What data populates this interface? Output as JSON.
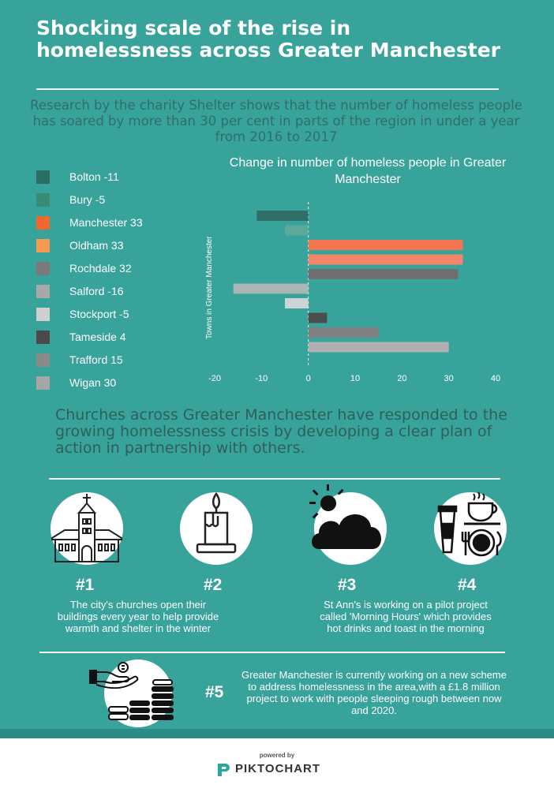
{
  "header": {
    "title": "Shocking scale of the rise in homelessness across Greater Manchester",
    "subtitle": "Research by the charity Shelter shows that the number of homeless people has soared by more than 30 per cent in parts of the region in under a year from 2016 to 2017"
  },
  "legend": {
    "items": [
      {
        "label": "Bolton -11",
        "color": "#2c6e64"
      },
      {
        "label": "Bury -5",
        "color": "#3a8a76"
      },
      {
        "label": "Manchester 33",
        "color": "#f0682f"
      },
      {
        "label": "Oldham 33",
        "color": "#f59a50"
      },
      {
        "label": "Rochdale 32",
        "color": "#7a7a7a"
      },
      {
        "label": "Salford -16",
        "color": "#a8a8a8"
      },
      {
        "label": "Stockport -5",
        "color": "#cfcfcf"
      },
      {
        "label": "Tameside 4",
        "color": "#4a4a4a"
      },
      {
        "label": "Trafford 15",
        "color": "#8a8a8a"
      },
      {
        "label": "Wigan 30",
        "color": "#a6a6a6"
      }
    ]
  },
  "chart_data": {
    "type": "bar",
    "orientation": "horizontal",
    "title": "Change in number of homeless people in Greater Manchester",
    "ylabel": "Towns in Greater Manchester",
    "xlabel": "",
    "categories": [
      "Bolton",
      "Bury",
      "Manchester",
      "Oldham",
      "Rochdale",
      "Salford",
      "Stockport",
      "Tameside",
      "Trafford",
      "Wigan"
    ],
    "values": [
      -11,
      -5,
      33,
      33,
      32,
      -16,
      -5,
      4,
      15,
      30
    ],
    "bar_colors": [
      "#2f6e66",
      "#5ea89a",
      "#f37552",
      "#f3866a",
      "#6f6f6f",
      "#a8b7b6",
      "#c9d6d5",
      "#4d4d4d",
      "#808080",
      "#b0b0b0"
    ],
    "xlim": [
      -20,
      40
    ],
    "xticks": [
      -20,
      -10,
      0,
      10,
      20,
      30,
      40
    ],
    "xtick_labels": [
      "-20",
      "-10",
      "0",
      "10",
      "20",
      "30",
      "40"
    ],
    "zero_line": "dashed",
    "grid": false
  },
  "churches": {
    "intro": "Churches across Greater Manchester have responded to the growing homelessness crisis by developing a clear plan of action in partnership with others."
  },
  "steps": [
    {
      "number": "#1",
      "text": "The city's churches open their buildings every year to help provide warmth and shelter in the winter",
      "icon": "church-icon"
    },
    {
      "number": "#2",
      "text": "",
      "icon": "candle-icon"
    },
    {
      "number": "#3",
      "text": "St Ann's is working on a pilot project called 'Morning Hours' which provides hot drinks and toast in the morning",
      "icon": "sun-cloud-icon"
    },
    {
      "number": "#4",
      "text": "",
      "icon": "coffee-meal-icon"
    },
    {
      "number": "#5",
      "text": "Greater Manchester is currently working on a new scheme to address homelessness in the area,with a £1.8 million project to work with people sleeping rough between now and 2020.",
      "icon": "money-coins-icon"
    }
  ],
  "footer": {
    "powered_by": "powered by",
    "brand": "PIKTOCHART"
  },
  "colors": {
    "background": "#38a39b",
    "accent_text": "#2f6f6b",
    "footer_strip": "#2a8c85"
  }
}
